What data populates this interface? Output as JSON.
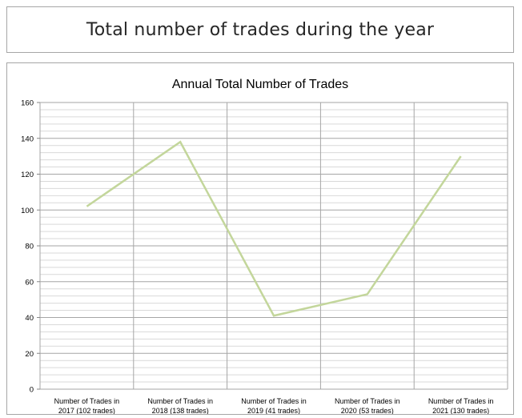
{
  "header": {
    "title": "Total number of trades during the year"
  },
  "chart_data": {
    "type": "line",
    "title": "Annual Total Number of Trades",
    "categories": [
      [
        "Number of Trades in",
        "2017 (102 trades)"
      ],
      [
        "Number of Trades in",
        "2018 (138 trades)"
      ],
      [
        "Number of Trades in",
        "2019 (41 trades)"
      ],
      [
        "Number of Trades in",
        "2020 (53 trades)"
      ],
      [
        "Number of Trades in",
        "2021 (130 trades)"
      ]
    ],
    "values": [
      102,
      138,
      41,
      53,
      130
    ],
    "ylim": [
      0,
      160
    ],
    "yticks": [
      "0",
      "20",
      "40",
      "60",
      "80",
      "100",
      "120",
      "140",
      "160"
    ],
    "minor_grid_step": 4,
    "grid": true,
    "line_color": "#c3d69b",
    "major_grid_color": "#a6a6a6",
    "minor_grid_color": "#d9d9d9"
  }
}
